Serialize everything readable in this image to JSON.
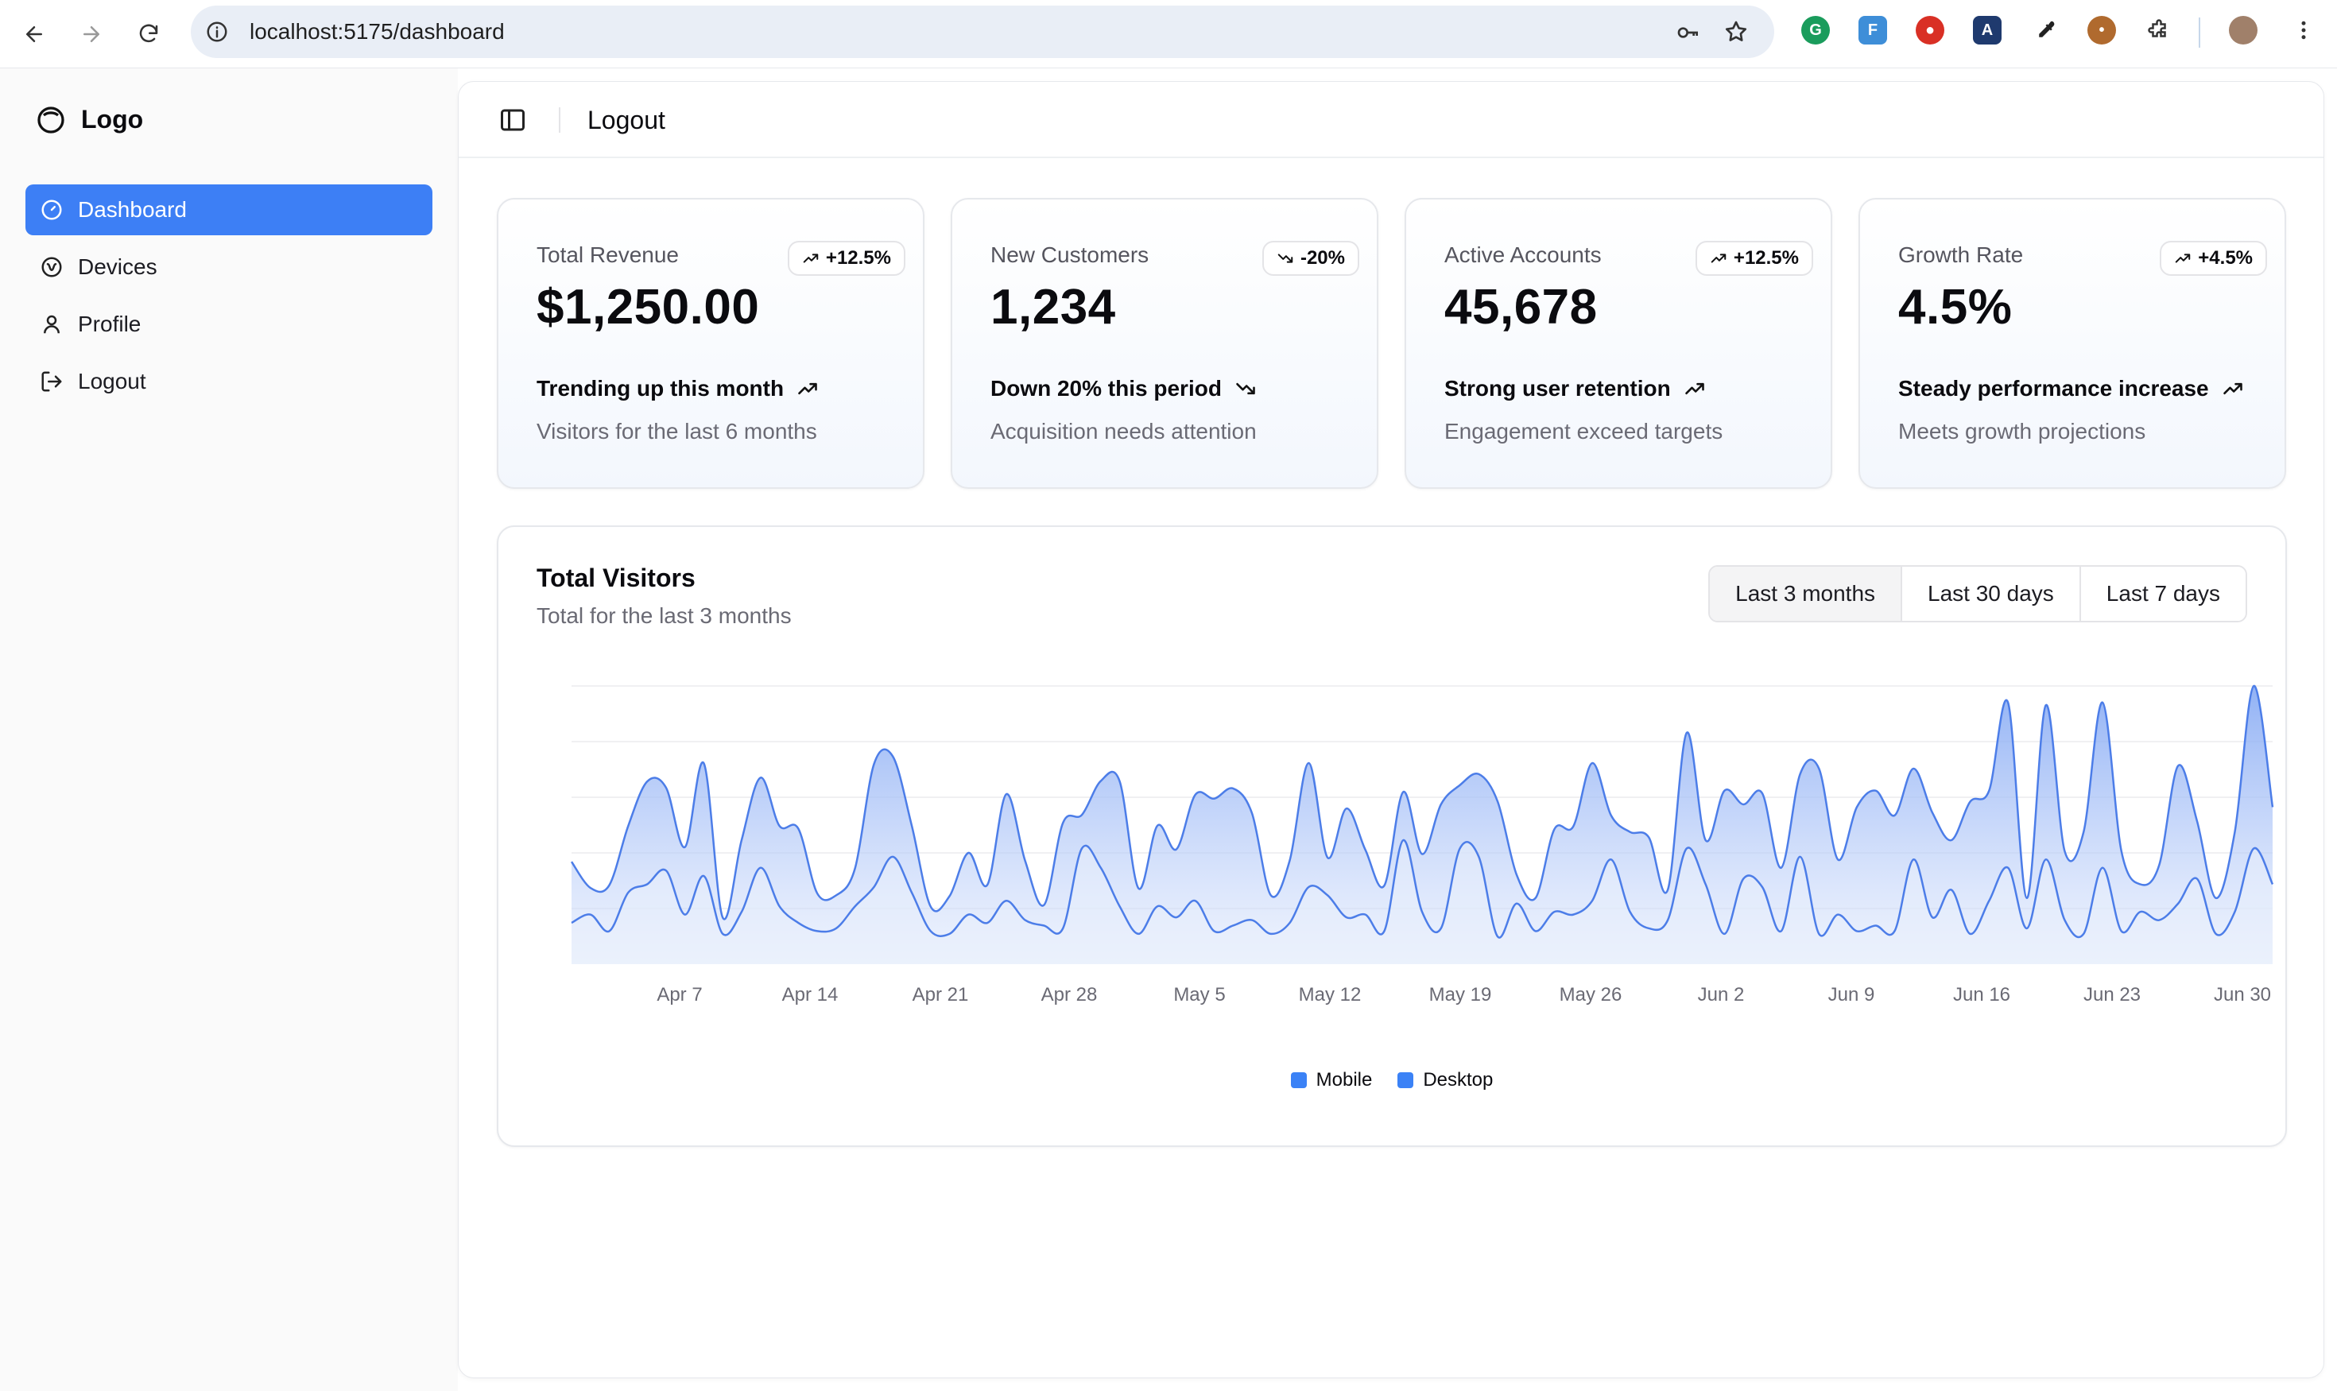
{
  "browser": {
    "url": "localhost:5175/dashboard",
    "icons": [
      "back-icon",
      "forward-icon",
      "reload-icon",
      "info-icon",
      "key-icon",
      "star-icon",
      "menu-dots-icon"
    ]
  },
  "sidebar": {
    "logo": "Logo",
    "items": [
      {
        "label": "Dashboard",
        "icon": "gauge-icon",
        "active": true
      },
      {
        "label": "Devices",
        "icon": "devices-icon",
        "active": false
      },
      {
        "label": "Profile",
        "icon": "user-icon",
        "active": false
      },
      {
        "label": "Logout",
        "icon": "logout-icon",
        "active": false
      }
    ]
  },
  "topbar": {
    "title": "Logout"
  },
  "cards": [
    {
      "label": "Total Revenue",
      "badge": "+12.5%",
      "trend": "up",
      "value": "$1,250.00",
      "foot_title": "Trending up this month",
      "foot_desc": "Visitors for the last 6 months"
    },
    {
      "label": "New Customers",
      "badge": "-20%",
      "trend": "down",
      "value": "1,234",
      "foot_title": "Down 20% this period",
      "foot_desc": "Acquisition needs attention"
    },
    {
      "label": "Active Accounts",
      "badge": "+12.5%",
      "trend": "up",
      "value": "45,678",
      "foot_title": "Strong user retention",
      "foot_desc": "Engagement exceed targets"
    },
    {
      "label": "Growth Rate",
      "badge": "+4.5%",
      "trend": "up",
      "value": "4.5%",
      "foot_title": "Steady performance increase",
      "foot_desc": "Meets growth projections"
    }
  ],
  "chart_card": {
    "title": "Total Visitors",
    "subtitle": "Total for the last 3 months",
    "ranges": [
      {
        "label": "Last 3 months",
        "selected": true
      },
      {
        "label": "Last 30 days",
        "selected": false
      },
      {
        "label": "Last 7 days",
        "selected": false
      }
    ]
  },
  "chart_data": {
    "type": "area",
    "title": "Total Visitors",
    "x_ticks": [
      "Apr 7",
      "Apr 14",
      "Apr 21",
      "Apr 28",
      "May 5",
      "May 12",
      "May 19",
      "May 26",
      "Jun 2",
      "Jun 9",
      "Jun 16",
      "Jun 23",
      "Jun 30"
    ],
    "x_start": "Apr 1",
    "x_end": "Jun 30",
    "stacked": true,
    "grid": true,
    "legend_position": "bottom",
    "series": [
      {
        "name": "Mobile",
        "color": "#3b82f6",
        "values": [
          150,
          180,
          120,
          260,
          290,
          340,
          180,
          320,
          110,
          190,
          350,
          210,
          150,
          120,
          130,
          210,
          280,
          390,
          260,
          120,
          110,
          180,
          150,
          230,
          160,
          140,
          130,
          420,
          350,
          210,
          110,
          210,
          170,
          230,
          120,
          140,
          160,
          110,
          150,
          280,
          250,
          170,
          180,
          120,
          450,
          190,
          130,
          420,
          390,
          100,
          220,
          120,
          190,
          180,
          230,
          380,
          190,
          130,
          160,
          420,
          290,
          110,
          310,
          280,
          120,
          390,
          110,
          180,
          120,
          140,
          120,
          380,
          170,
          270,
          110,
          230,
          350,
          130,
          380,
          160,
          110,
          350,
          120,
          190,
          160,
          220,
          310,
          110,
          190,
          420,
          290
        ]
      },
      {
        "name": "Desktop",
        "color": "#3b82f6",
        "values": [
          222,
          97,
          167,
          242,
          373,
          301,
          245,
          409,
          59,
          261,
          327,
          292,
          342,
          137,
          120,
          138,
          446,
          364,
          243,
          89,
          137,
          224,
          138,
          387,
          215,
          75,
          383,
          122,
          315,
          454,
          165,
          293,
          247,
          385,
          481,
          498,
          388,
          140,
          227,
          450,
          137,
          395,
          235,
          165,
          175,
          210,
          450,
          230,
          300,
          490,
          105,
          120,
          300,
          320,
          500,
          160,
          290,
          330,
          110,
          420,
          160,
          520,
          270,
          340,
          230,
          300,
          600,
          200,
          450,
          490,
          420,
          330,
          380,
          180,
          480,
          400,
          600,
          110,
          560,
          250,
          370,
          600,
          290,
          100,
          200,
          500,
          210,
          130,
          290,
          590,
          280
        ]
      }
    ]
  },
  "colors": {
    "accent": "#3d7ff5",
    "chart_fill": "#8fb0f5",
    "chart_line": "#4c7de8"
  }
}
